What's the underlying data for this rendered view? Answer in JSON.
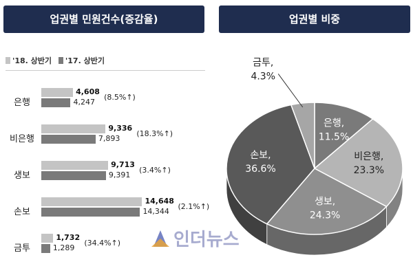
{
  "left_title": "업권별 민원건수(증감율)",
  "right_title": "업권별 비중",
  "legend": {
    "current": "'18. 상반기",
    "previous": "'17. 상반기"
  },
  "colors": {
    "header": "#1f2d4f",
    "bar_current": "#c4c4c4",
    "bar_previous": "#7a7a7a"
  },
  "watermark": "인더뉴스",
  "chart_data": [
    {
      "type": "bar",
      "orientation": "horizontal",
      "title": "업권별 민원건수(증감율)",
      "categories": [
        "은행",
        "비은행",
        "생보",
        "손보",
        "금투"
      ],
      "series": [
        {
          "name": "'18. 상반기",
          "values": [
            4608,
            9336,
            9713,
            14648,
            1732
          ],
          "labels": [
            "4,608",
            "9,336",
            "9,713",
            "14,648",
            "1,732"
          ]
        },
        {
          "name": "'17. 상반기",
          "values": [
            4247,
            7893,
            9391,
            14344,
            1289
          ],
          "labels": [
            "4,247",
            "7,893",
            "9,391",
            "14,344",
            "1,289"
          ]
        }
      ],
      "growth_labels": [
        "(8.5%↑)",
        "(18.3%↑)",
        "(3.4%↑)",
        "(2.1%↑)",
        "(34.4%↑)"
      ],
      "legend_position": "top-left"
    },
    {
      "type": "pie",
      "title": "업권별 비중",
      "slices": [
        {
          "label": "은행,",
          "value": 11.5,
          "text": "11.5%",
          "color": "#7a7a7a"
        },
        {
          "label": "비은행,",
          "value": 23.3,
          "text": "23.3%",
          "color": "#b5b5b5"
        },
        {
          "label": "생보,",
          "value": 24.3,
          "text": "24.3%",
          "color": "#8f8f8f"
        },
        {
          "label": "손보,",
          "value": 36.6,
          "text": "36.6%",
          "color": "#595959"
        },
        {
          "label": "금투,",
          "value": 4.3,
          "text": "4.3%",
          "color": "#a6a6a6"
        }
      ]
    }
  ]
}
